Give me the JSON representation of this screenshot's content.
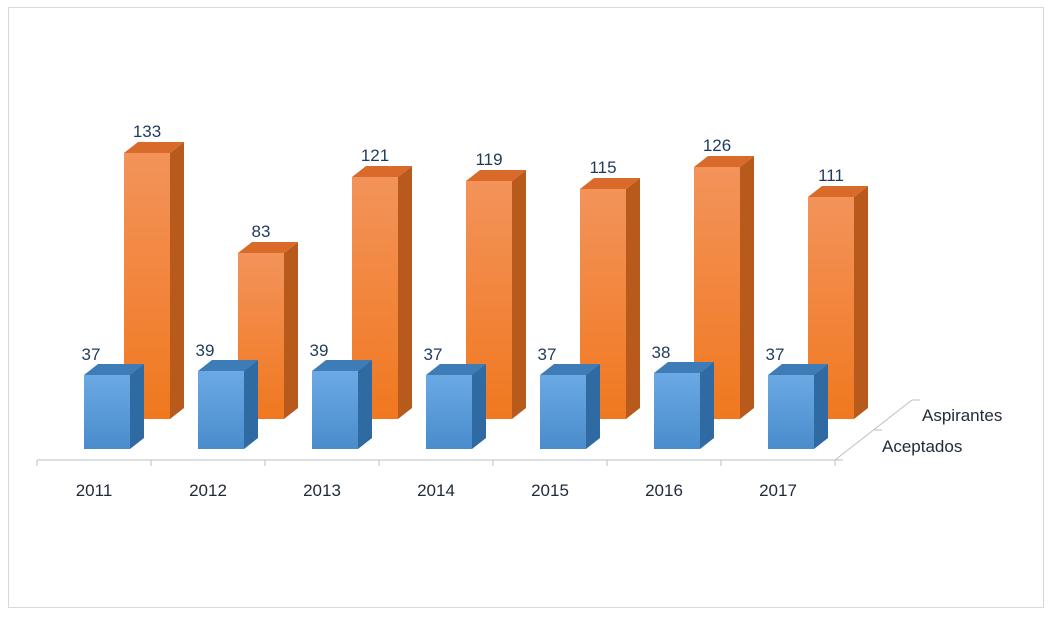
{
  "chart_data": {
    "type": "bar",
    "style": "3d-clustered-depth",
    "categories": [
      "2011",
      "2012",
      "2013",
      "2014",
      "2015",
      "2016",
      "2017"
    ],
    "series": [
      {
        "name": "Aceptados",
        "values": [
          37,
          39,
          39,
          37,
          37,
          38,
          37
        ],
        "color": "#5b9bd5"
      },
      {
        "name": "Aspirantes",
        "values": [
          133,
          83,
          121,
          119,
          115,
          126,
          111
        ],
        "color": "#ed7d31"
      }
    ],
    "title": "",
    "xlabel": "",
    "ylabel": "",
    "ylim": [
      0,
      140
    ],
    "grid": false,
    "data_labels": true,
    "legend": "depth-axis-right"
  }
}
